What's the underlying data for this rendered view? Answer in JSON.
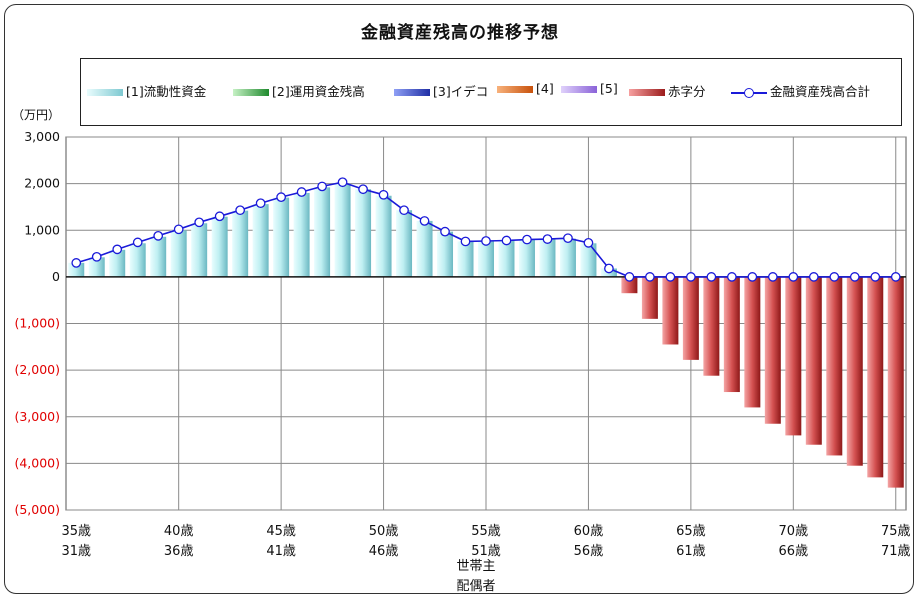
{
  "chart_data": {
    "type": "bar",
    "title": "金融資産残高の推移予想",
    "unit_label": "（万円）",
    "ylim": [
      -5000,
      3000
    ],
    "yticks": [
      {
        "value": 3000,
        "label": "3,000",
        "color": "#111111"
      },
      {
        "value": 2000,
        "label": "2,000",
        "color": "#111111"
      },
      {
        "value": 1000,
        "label": "1,000",
        "color": "#111111"
      },
      {
        "value": 0,
        "label": "0",
        "color": "#111111"
      },
      {
        "value": -1000,
        "label": "(1,000)",
        "color": "#e00000"
      },
      {
        "value": -2000,
        "label": "(2,000)",
        "color": "#e00000"
      },
      {
        "value": -3000,
        "label": "(3,000)",
        "color": "#e00000"
      },
      {
        "value": -4000,
        "label": "(4,000)",
        "color": "#e00000"
      },
      {
        "value": -5000,
        "label": "(5,000)",
        "color": "#e00000"
      }
    ],
    "x_labels_primary": [
      "35歳",
      "40歳",
      "45歳",
      "50歳",
      "55歳",
      "60歳",
      "65歳",
      "70歳",
      "75歳"
    ],
    "x_labels_secondary": [
      "31歳",
      "36歳",
      "41歳",
      "46歳",
      "51歳",
      "56歳",
      "61歳",
      "66歳",
      "71歳"
    ],
    "row_labels": [
      "世帯主",
      "配偶者"
    ],
    "legend": [
      {
        "label": "[1]流動性資金",
        "kind": "bar",
        "color": "#aee9ee"
      },
      {
        "label": "[2]運用資金残高",
        "kind": "bar",
        "color": "#3fb24a"
      },
      {
        "label": "[3]イデコ",
        "kind": "bar",
        "color": "#3a47c9"
      },
      {
        "label": "[4]",
        "kind": "bar",
        "color": "#e0701c"
      },
      {
        "label": "[5]",
        "kind": "bar",
        "color": "#a98ae0"
      },
      {
        "label": "赤字分",
        "kind": "bar",
        "color": "#c23434"
      },
      {
        "label": "金融資産残高合計",
        "kind": "line",
        "color": "#1a1ad9"
      }
    ],
    "grid": true,
    "ages_head": [
      35,
      36,
      37,
      38,
      39,
      40,
      41,
      42,
      43,
      44,
      45,
      46,
      47,
      48,
      49,
      50,
      51,
      52,
      53,
      54,
      55,
      56,
      57,
      58,
      59,
      60,
      61,
      62,
      63,
      64,
      65,
      66,
      67,
      68,
      69,
      70,
      71,
      72,
      73,
      74,
      75
    ],
    "series": [
      {
        "name": "[1]流動性資金",
        "values": [
          300,
          420,
          580,
          720,
          860,
          1000,
          1150,
          1290,
          1420,
          1560,
          1700,
          1800,
          1920,
          2000,
          1880,
          1740,
          1430,
          1200,
          970,
          760,
          760,
          780,
          800,
          810,
          820,
          720,
          180,
          0,
          0,
          0,
          0,
          0,
          0,
          0,
          0,
          0,
          0,
          0,
          0,
          0,
          0
        ]
      },
      {
        "name": "赤字分",
        "values": [
          0,
          0,
          0,
          0,
          0,
          0,
          0,
          0,
          0,
          0,
          0,
          0,
          0,
          0,
          0,
          0,
          0,
          0,
          0,
          0,
          0,
          0,
          0,
          0,
          0,
          0,
          0,
          -350,
          -900,
          -1450,
          -1780,
          -2120,
          -2470,
          -2800,
          -3150,
          -3400,
          -3600,
          -3830,
          -4050,
          -4300,
          -4520
        ]
      },
      {
        "name": "金融資産残高合計",
        "values": [
          300,
          430,
          590,
          740,
          880,
          1020,
          1170,
          1300,
          1430,
          1580,
          1710,
          1820,
          1940,
          2030,
          1880,
          1760,
          1430,
          1200,
          970,
          760,
          770,
          780,
          800,
          810,
          830,
          730,
          180,
          0,
          0,
          0,
          0,
          0,
          0,
          0,
          0,
          0,
          0,
          0,
          0,
          0,
          0
        ]
      }
    ]
  }
}
